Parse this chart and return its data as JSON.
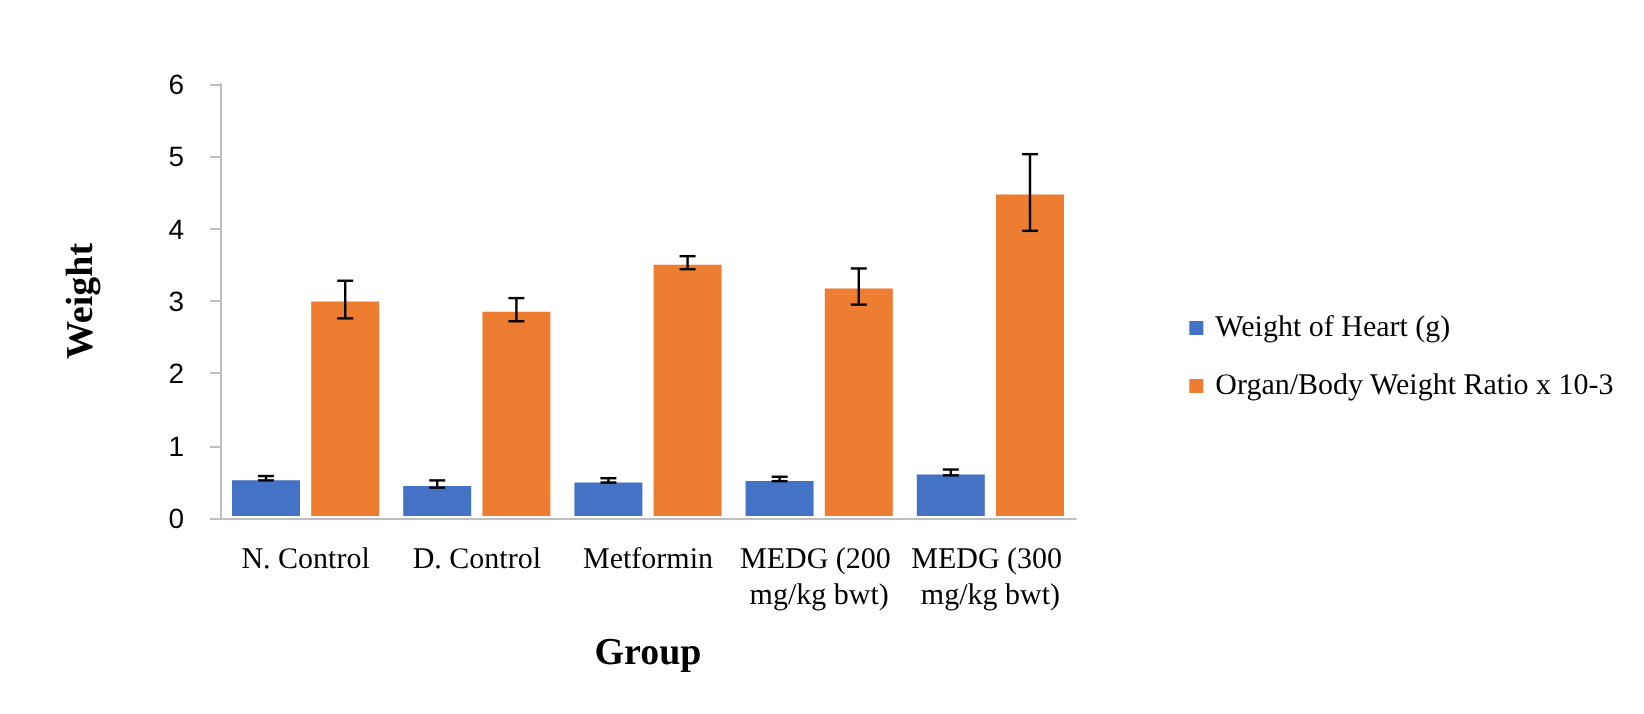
{
  "chart_data": {
    "type": "bar",
    "xlabel": "Group",
    "ylabel": "Weight",
    "categories": [
      "N. Control",
      "D. Control",
      "Metformin",
      "MEDG (200 mg/kg bwt)",
      "MEDG (300 mg/kg bwt)"
    ],
    "series": [
      {
        "name": "Weight of Heart (g)",
        "color": "#4472c4",
        "values": [
          0.55,
          0.47,
          0.52,
          0.54,
          0.63
        ],
        "errors": [
          0.03,
          0.05,
          0.03,
          0.03,
          0.04
        ]
      },
      {
        "name": "Organ/Body Weight Ratio x 10-3",
        "color": "#ed7d31",
        "values": [
          3.02,
          2.88,
          3.53,
          3.2,
          4.5
        ],
        "errors": [
          0.26,
          0.16,
          0.09,
          0.25,
          0.53
        ]
      }
    ],
    "ylim": [
      0,
      6
    ],
    "yticks": [
      0,
      1,
      2,
      3,
      4,
      5,
      6
    ],
    "grid": false,
    "legend": "right"
  }
}
